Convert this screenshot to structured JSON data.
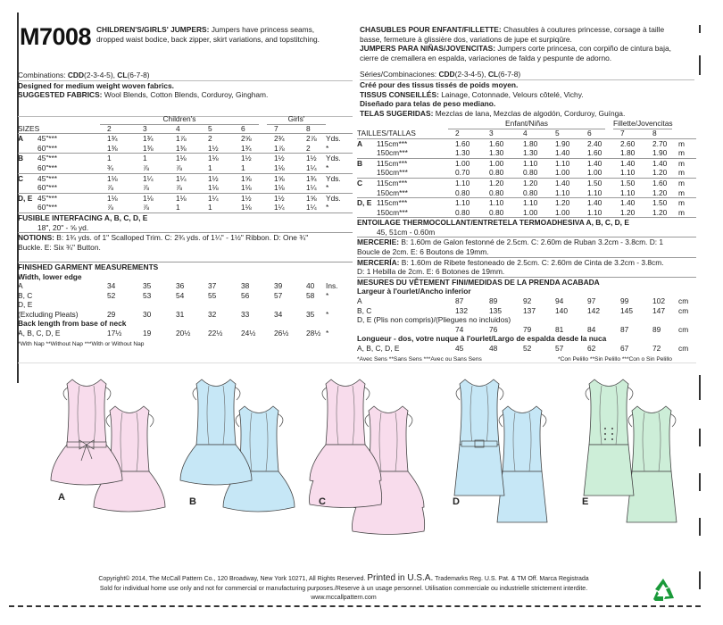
{
  "pattern_code": "M7008",
  "en": {
    "title": "CHILDREN'S/GIRLS' JUMPERS:",
    "desc1": "Jumpers have princess seams,",
    "desc2": "dropped waist bodice, back zipper, skirt variations, and topstitching.",
    "combinations_label": "Combinations:",
    "combo_cdd": "CDD",
    "combo_cdd_sizes": "(2-3-4-5),",
    "combo_cl": "CL",
    "combo_cl_sizes": "(6-7-8)",
    "designed": "Designed for medium weight woven fabrics.",
    "fabrics_label": "SUGGESTED FABRICS:",
    "fabrics": "Wool Blends, Cotton Blends, Corduroy, Gingham.",
    "group1": "Children's",
    "group2": "Girls'",
    "sizes_label": "SIZES",
    "sizes": [
      "2",
      "3",
      "4",
      "5",
      "6",
      "7",
      "8"
    ],
    "yardage": [
      {
        "view": "A",
        "width": "45\"***",
        "values": [
          "1¾",
          "1¾",
          "1⅞",
          "2",
          "2⅝",
          "2¾",
          "2⅞"
        ],
        "unit": "Yds."
      },
      {
        "view": "",
        "width": "60\"***",
        "values": [
          "1⅜",
          "1⅜",
          "1⅜",
          "1½",
          "1¾",
          "1⅞",
          "2"
        ],
        "unit": "*"
      },
      {
        "view": "B",
        "width": "45\"***",
        "values": [
          "1",
          "1",
          "1⅛",
          "1⅛",
          "1½",
          "1½",
          "1½"
        ],
        "unit": "Yds."
      },
      {
        "view": "",
        "width": "60\"***",
        "values": [
          "¾",
          "⅞",
          "⅞",
          "1",
          "1",
          "1⅛",
          "1¼"
        ],
        "unit": "*"
      },
      {
        "view": "C",
        "width": "45\"***",
        "values": [
          "1⅛",
          "1¼",
          "1¼",
          "1½",
          "1⅝",
          "1⅝",
          "1¾"
        ],
        "unit": "Yds."
      },
      {
        "view": "",
        "width": "60\"***",
        "values": [
          "⅞",
          "⅞",
          "⅞",
          "1⅛",
          "1⅛",
          "1⅛",
          "1¼"
        ],
        "unit": "*"
      },
      {
        "view": "D, E",
        "width": "45\"***",
        "values": [
          "1⅛",
          "1⅛",
          "1⅛",
          "1¼",
          "1½",
          "1½",
          "1⅝"
        ],
        "unit": "Yds."
      },
      {
        "view": "",
        "width": "60\"***",
        "values": [
          "⅞",
          "⅞",
          "1",
          "1",
          "1⅛",
          "1¼",
          "1¼"
        ],
        "unit": "*"
      }
    ],
    "interfacing_title": "FUSIBLE INTERFACING A, B, C, D, E",
    "interfacing_value": "18\", 20\" - ⅝ yd.",
    "notions_label": "NOTIONS:",
    "notions1": "B: 1¾ yds. of 1\" Scalloped Trim. C: 2¾ yds. of 1¼\" - 1½\" Ribbon. D: One ¾\"",
    "notions2": "Buckle. E: Six ¾\" Button.",
    "measure_title": "FINISHED GARMENT MEASUREMENTS",
    "width_title": "Width, lower edge",
    "width_rows": [
      {
        "label": "A",
        "values": [
          "34",
          "35",
          "36",
          "37",
          "38",
          "39",
          "40"
        ],
        "unit": "Ins."
      },
      {
        "label": "B, C",
        "values": [
          "52",
          "53",
          "54",
          "55",
          "56",
          "57",
          "58"
        ],
        "unit": "*"
      },
      {
        "label": "D, E",
        "values": [],
        "unit": ""
      },
      {
        "label": "(Excluding Pleats)",
        "values": [
          "29",
          "30",
          "31",
          "32",
          "33",
          "34",
          "35"
        ],
        "unit": "*"
      }
    ],
    "length_title": "Back length from base of neck",
    "length_rows": [
      {
        "label": "A, B, C, D, E",
        "values": [
          "17½",
          "19",
          "20½",
          "22½",
          "24½",
          "26½",
          "28½"
        ],
        "unit": "*"
      }
    ],
    "footnote": "*With Nap **Without Nap ***With or Without Nap"
  },
  "fr": {
    "title_fr": "CHASUBLES POUR ENFANT/FILLETTE:",
    "desc_fr1": "Chasubles à coutures princesse, corsage à taille",
    "desc_fr2": "basse, fermeture à glissière dos, variations de jupe et surpiqûre.",
    "title_es": "JUMPERS PARA NIÑAS/JOVENCITAS:",
    "desc_es1": "Jumpers corte princesa, con corpiño de cintura baja,",
    "desc_es2": "cierre de cremallera en espalda, variaciones de falda y pespunte de adorno.",
    "combinations_label": "Séries/Combinaciones:",
    "combo_cdd": "CDD",
    "combo_cdd_sizes": "(2-3-4-5),",
    "combo_cl": "CL",
    "combo_cl_sizes": "(6-7-8)",
    "designed_fr": "Créé pour des tissus tissés de poids moyen.",
    "fabrics_fr_label": "TISSUS CONSEILLÉS:",
    "fabrics_fr": "Lainage, Cotonnade, Velours côtelé, Vichy.",
    "designed_es": "Diseñado para telas de peso mediano.",
    "fabrics_es_label": "TELAS SUGERIDAS:",
    "fabrics_es": "Mezclas de lana, Mezclas de algodón, Corduroy, Guínga.",
    "group1": "Enfant/Niñas",
    "group2": "Fillette/Jovencitas",
    "sizes_label": "TAILLES/TALLAS",
    "sizes": [
      "2",
      "3",
      "4",
      "5",
      "6",
      "7",
      "8"
    ],
    "yardage": [
      {
        "view": "A",
        "width": "115cm***",
        "values": [
          "1.60",
          "1.60",
          "1.80",
          "1.90",
          "2.40",
          "2.60",
          "2.70"
        ],
        "unit": "m"
      },
      {
        "view": "",
        "width": "150cm***",
        "values": [
          "1.30",
          "1.30",
          "1.30",
          "1.40",
          "1.60",
          "1.80",
          "1.90"
        ],
        "unit": "m"
      },
      {
        "view": "B",
        "width": "115cm***",
        "values": [
          "1.00",
          "1.00",
          "1.10",
          "1.10",
          "1.40",
          "1.40",
          "1.40"
        ],
        "unit": "m"
      },
      {
        "view": "",
        "width": "150cm***",
        "values": [
          "0.70",
          "0.80",
          "0.80",
          "1.00",
          "1.00",
          "1.10",
          "1.20"
        ],
        "unit": "m"
      },
      {
        "view": "C",
        "width": "115cm***",
        "values": [
          "1.10",
          "1.20",
          "1.20",
          "1.40",
          "1.50",
          "1.50",
          "1.60"
        ],
        "unit": "m"
      },
      {
        "view": "",
        "width": "150cm***",
        "values": [
          "0.80",
          "0.80",
          "0.80",
          "1.10",
          "1.10",
          "1.10",
          "1.20"
        ],
        "unit": "m"
      },
      {
        "view": "D, E",
        "width": "115cm***",
        "values": [
          "1.10",
          "1.10",
          "1.10",
          "1.20",
          "1.40",
          "1.40",
          "1.50"
        ],
        "unit": "m"
      },
      {
        "view": "",
        "width": "150cm***",
        "values": [
          "0.80",
          "0.80",
          "1.00",
          "1.00",
          "1.10",
          "1.20",
          "1.20"
        ],
        "unit": "m"
      }
    ],
    "interfacing_title": "ENTOILAGE THERMOCOLLANT/ENTRETELA TERMOADHESIVA A, B, C, D, E",
    "interfacing_value": "45, 51cm - 0.60m",
    "mercerie_label": "MERCERIE:",
    "mercerie1": "B: 1.60m de Galon festonné de 2.5cm. C: 2.60m de Ruban 3.2cm - 3.8cm. D: 1",
    "mercerie2": "Boucle de 2cm. E: 6 Boutons de 19mm.",
    "merceria_label": "MERCERÍA:",
    "merceria1": "B: 1.60m de Ribete festoneado de 2.5cm. C: 2.60m de Cinta de 3.2cm - 3.8cm.",
    "merceria2": "D: 1 Hebilla de 2cm. E: 6 Botones de 19mm.",
    "measure_title": "MESURES DU VÊTEMENT FINI/MEDIDAS DE LA PRENDA ACABADA",
    "width_title": "Largeur à l'ourlet/Ancho inferior",
    "width_rows": [
      {
        "label": "A",
        "values": [
          "87",
          "89",
          "92",
          "94",
          "97",
          "99",
          "102"
        ],
        "unit": "cm"
      },
      {
        "label": "B, C",
        "values": [
          "132",
          "135",
          "137",
          "140",
          "142",
          "145",
          "147"
        ],
        "unit": "cm"
      },
      {
        "label": "D, E (Plis non compris)/(Pliegues no incluidos)",
        "values": [],
        "unit": ""
      },
      {
        "label": "",
        "values": [
          "74",
          "76",
          "79",
          "81",
          "84",
          "87",
          "89"
        ],
        "unit": "cm"
      }
    ],
    "length_title": "Longueur - dos, votre nuque à l'ourlet/Largo de espalda desde la nuca",
    "length_rows": [
      {
        "label": "A, B, C, D, E",
        "values": [
          "45",
          "48",
          "52",
          "57",
          "62",
          "67",
          "72"
        ],
        "unit": "cm"
      }
    ],
    "footnote_fr": "*Avec Sens **Sans Sens ***Avec ou Sans Sens",
    "footnote_es": "*Con Pelillo **Sin Pelillo ***Con o Sin Pelillo"
  },
  "views": [
    {
      "label": "A",
      "color": "#f8dcec"
    },
    {
      "label": "B",
      "color": "#c6e7f6"
    },
    {
      "label": "C",
      "color": "#f8dcec"
    },
    {
      "label": "D",
      "color": "#c6e7f6"
    },
    {
      "label": "E",
      "color": "#cdeed8"
    }
  ],
  "footer": {
    "copyright": "Copyright© 2014,  The McCall Pattern Co., 120 Broadway, New York 10271, All Rights Reserved.",
    "printed": "Printed in U.S.A.",
    "trademarks": "Trademarks Reg. U.S. Pat. & TM Off. Marca Registrada",
    "sold": "Sold for individual home use only and not for commercial or manufacturing purposes./Reserve à un usage personnel. Utilisation commerciale ou industrielle strictement interdite.",
    "website": "www.mccallpattern.com",
    "recycle_icon_color": "#1a9a3a"
  }
}
